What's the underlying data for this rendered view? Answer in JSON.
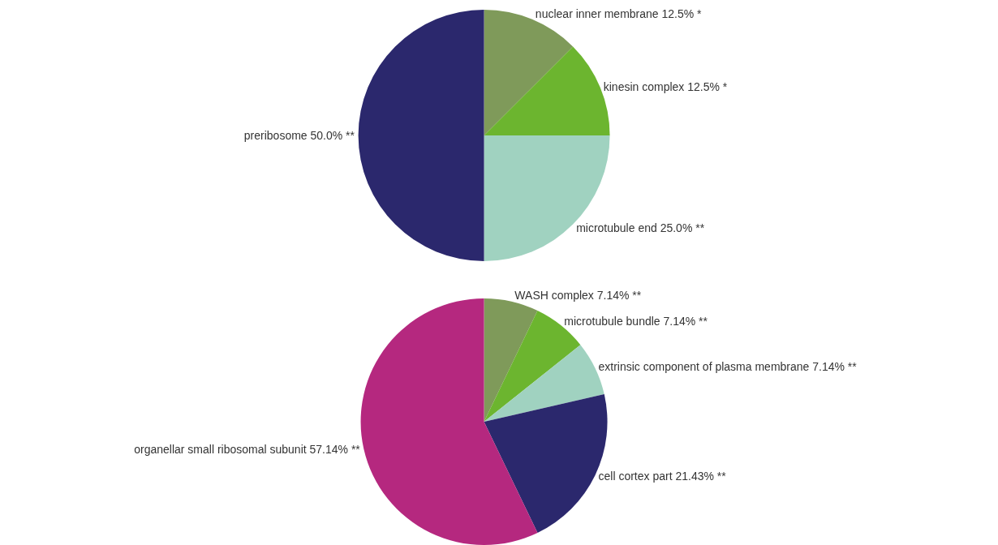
{
  "chart_data": [
    {
      "type": "pie",
      "categories": [
        "nuclear inner membrane",
        "kinesin complex",
        "microtubule end",
        "preribosome"
      ],
      "values": [
        12.5,
        12.5,
        25.0,
        50.0
      ],
      "value_labels": [
        "12.5% *",
        "12.5% *",
        "25.0% **",
        "50.0% **"
      ],
      "colors": [
        "#7f9a5a",
        "#6cb52f",
        "#a0d2c0",
        "#2b286d"
      ]
    },
    {
      "type": "pie",
      "categories": [
        "WASH complex",
        "microtubule bundle",
        "extrinsic component of plasma membrane",
        "cell cortex part",
        "organellar small ribosomal subunit"
      ],
      "values": [
        7.14,
        7.14,
        7.14,
        21.43,
        57.14
      ],
      "value_labels": [
        "7.14% **",
        "7.14% **",
        "7.14% **",
        "21.43% **",
        "57.14% **"
      ],
      "colors": [
        "#7f9a5a",
        "#6cb52f",
        "#a0d2c0",
        "#2b286d",
        "#b5287f"
      ]
    }
  ]
}
